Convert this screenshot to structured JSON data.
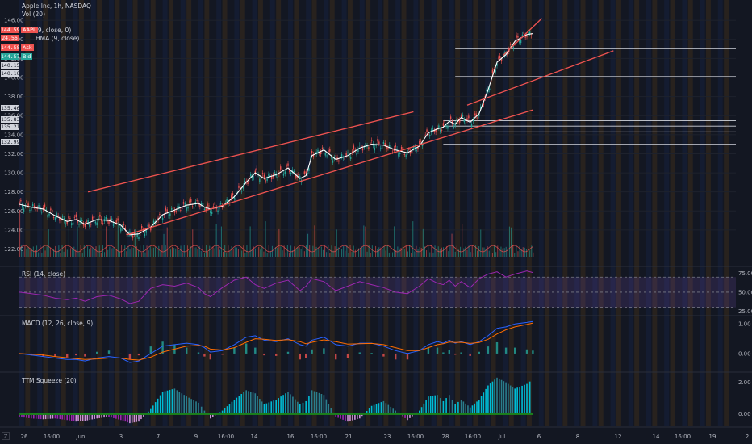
{
  "header": {
    "symbol_line": "Apple Inc, 1h, NASDAQ",
    "vol_line": "Vol (20)",
    "ma_line": "(9, close, 0)",
    "hma_line": "HMA (9, close)"
  },
  "price_badges": [
    {
      "value": "144.59",
      "tag": "AAPL",
      "color": "#ef5350"
    },
    {
      "value": "24.56",
      "tag": "",
      "color": "#ef5350"
    },
    {
      "value": "144.58",
      "tag": "Ask",
      "color": "#ef5350"
    },
    {
      "value": "144.57",
      "tag": "Bid",
      "color": "#26a69a"
    },
    {
      "value": "140.15",
      "tag": "",
      "color": "#d1d4dc"
    },
    {
      "value": "140.10",
      "tag": "",
      "color": "#d1d4dc"
    }
  ],
  "level_labels": [
    "135.46",
    "135.83",
    "135.21",
    "132.99"
  ],
  "panes": {
    "rsi": {
      "label": "RSI (14, close)",
      "ticks": [
        "75.00",
        "50.00",
        "25.00"
      ]
    },
    "macd": {
      "label": "MACD (12, 26, close, 9)",
      "ticks": [
        "1.00",
        "0.00"
      ]
    },
    "ttm": {
      "label": "TTM Squeeze (20)",
      "ticks": [
        "2.00",
        "0.00"
      ]
    }
  },
  "zoom_icon": "Z",
  "chart_data": [
    {
      "type": "line",
      "title": "Apple Inc, 1h, NASDAQ",
      "y_ticks": [
        146,
        144,
        142,
        140,
        138,
        136,
        134,
        132,
        130,
        128,
        126,
        124,
        122
      ],
      "ylim": [
        121.2,
        146.6
      ],
      "x_tick_labels": [
        "26",
        "16:00",
        "Jun",
        "3",
        "7",
        "9",
        "16:00",
        "14",
        "16",
        "16:00",
        "21",
        "23",
        "16:00",
        "28",
        "16:00",
        "Jul",
        "6",
        "8",
        "12",
        "14",
        "16:00",
        "19",
        "2"
      ],
      "x": [
        0,
        4,
        8,
        12,
        16,
        19,
        22,
        26,
        30,
        34,
        37,
        40,
        44,
        48,
        52,
        56,
        60,
        62,
        64,
        68,
        72,
        76,
        79,
        82,
        86,
        90,
        94,
        96,
        98,
        102,
        106,
        110,
        114,
        118,
        122,
        126,
        130,
        134,
        137,
        140,
        142,
        144,
        146,
        148,
        151,
        154,
        157,
        160,
        163,
        166,
        170,
        172
      ],
      "close": [
        126.7,
        126.4,
        126.2,
        125.5,
        124.9,
        125.1,
        124.6,
        125.1,
        125.0,
        124.5,
        123.5,
        123.6,
        124.3,
        125.6,
        126.1,
        126.6,
        126.8,
        126.4,
        126.2,
        126.5,
        127.5,
        129.0,
        130.0,
        129.4,
        129.8,
        130.5,
        129.4,
        129.7,
        131.8,
        132.4,
        131.4,
        131.8,
        132.6,
        133.0,
        132.9,
        132.4,
        132.1,
        132.8,
        134.2,
        134.6,
        134.8,
        135.4,
        135.1,
        135.8,
        135.3,
        136.2,
        138.7,
        141.6,
        142.4,
        143.8,
        144.5,
        144.6
      ],
      "channels": [
        {
          "from": [
            23,
            128.0
          ],
          "to": [
            132,
            136.4
          ]
        },
        {
          "from": [
            36,
            123.5
          ],
          "to": [
            172,
            136.6
          ]
        },
        {
          "from": [
            150,
            137.1
          ],
          "to": [
            199,
            142.8
          ]
        },
        {
          "from": [
            162,
            142.3
          ],
          "to": [
            175,
            146.2
          ]
        }
      ],
      "horizontal_levels": [
        143.0,
        140.1,
        135.46,
        134.9,
        134.3,
        133.0
      ]
    },
    {
      "type": "area",
      "title": "RSI (14, close)",
      "ylim": [
        20,
        82
      ],
      "bands": [
        30,
        50,
        70
      ],
      "values": [
        50,
        48,
        46,
        42,
        40,
        42,
        38,
        44,
        46,
        41,
        35,
        38,
        55,
        60,
        58,
        62,
        56,
        48,
        44,
        56,
        66,
        70,
        60,
        55,
        62,
        66,
        52,
        58,
        68,
        64,
        52,
        58,
        64,
        60,
        56,
        50,
        48,
        58,
        68,
        62,
        60,
        66,
        58,
        64,
        56,
        68,
        74,
        77,
        70,
        74,
        78,
        76
      ]
    },
    {
      "type": "bar",
      "title": "MACD (12, 26, close, 9)",
      "ylim": [
        -0.6,
        1.25
      ],
      "macd": [
        0.0,
        -0.05,
        -0.1,
        -0.15,
        -0.2,
        -0.2,
        -0.25,
        -0.15,
        -0.1,
        -0.15,
        -0.3,
        -0.25,
        0.0,
        0.25,
        0.3,
        0.35,
        0.3,
        0.2,
        0.05,
        0.1,
        0.3,
        0.55,
        0.6,
        0.45,
        0.4,
        0.5,
        0.3,
        0.25,
        0.45,
        0.55,
        0.3,
        0.25,
        0.35,
        0.35,
        0.25,
        0.1,
        0.0,
        0.1,
        0.3,
        0.4,
        0.35,
        0.45,
        0.35,
        0.4,
        0.3,
        0.4,
        0.6,
        0.85,
        0.9,
        1.0,
        1.05,
        1.08
      ],
      "signal": [
        0.0,
        -0.02,
        -0.05,
        -0.1,
        -0.14,
        -0.17,
        -0.2,
        -0.18,
        -0.15,
        -0.15,
        -0.2,
        -0.22,
        -0.12,
        0.05,
        0.15,
        0.25,
        0.28,
        0.25,
        0.15,
        0.12,
        0.2,
        0.38,
        0.5,
        0.48,
        0.44,
        0.47,
        0.4,
        0.33,
        0.38,
        0.46,
        0.4,
        0.32,
        0.33,
        0.34,
        0.3,
        0.2,
        0.1,
        0.1,
        0.2,
        0.3,
        0.33,
        0.39,
        0.37,
        0.38,
        0.34,
        0.37,
        0.48,
        0.66,
        0.8,
        0.9,
        0.98,
        1.03
      ]
    },
    {
      "type": "bar",
      "title": "TTM Squeeze (20)",
      "ylim": [
        -0.8,
        2.6
      ],
      "values": [
        -0.2,
        -0.3,
        -0.35,
        -0.3,
        -0.4,
        -0.5,
        -0.45,
        -0.3,
        -0.2,
        -0.4,
        -0.6,
        -0.5,
        0.3,
        1.4,
        1.6,
        1.1,
        0.7,
        0.2,
        -0.3,
        0.2,
        0.9,
        1.5,
        1.3,
        0.6,
        0.9,
        1.4,
        0.6,
        0.8,
        1.5,
        1.2,
        -0.2,
        -0.5,
        -0.3,
        0.5,
        0.8,
        0.2,
        -0.4,
        0.2,
        1.1,
        1.2,
        0.8,
        1.2,
        0.6,
        0.9,
        0.4,
        0.9,
        1.8,
        2.3,
        2.0,
        1.6,
        1.9,
        2.2
      ]
    }
  ],
  "colors": {
    "background": "#131722",
    "up": "#26a69a",
    "down": "#ef5350",
    "hma": "#ffffff",
    "channel": "#ef5350",
    "rsi": "#9c27b0",
    "macd": "#2962ff",
    "signal": "#ff6d00"
  }
}
